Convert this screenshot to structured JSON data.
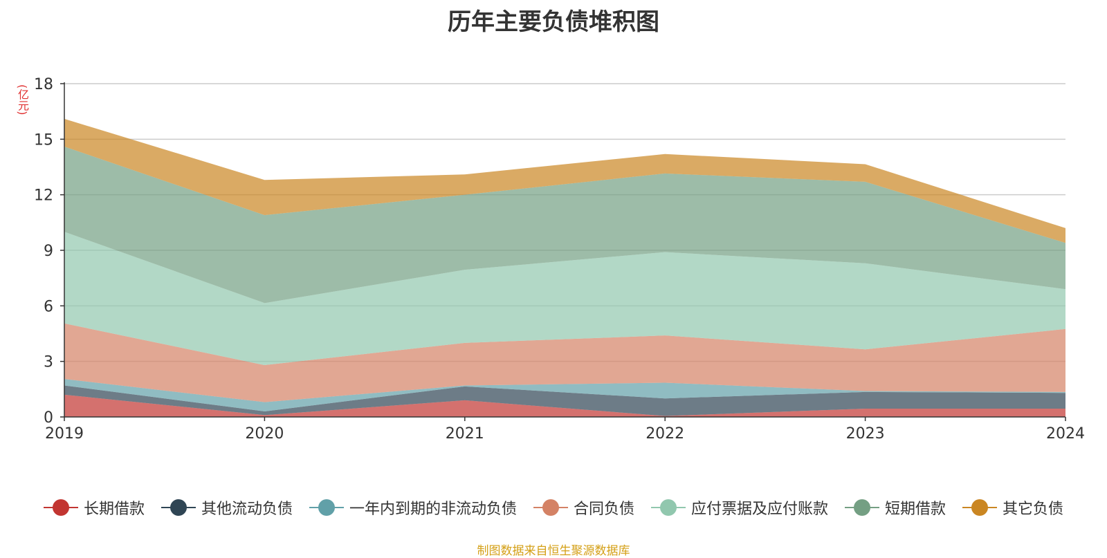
{
  "title": "历年主要负债堆积图",
  "unit_label": "(亿元)",
  "source": "制图数据来自恒生聚源数据库",
  "chart_data": {
    "type": "area",
    "stacked": true,
    "x": [
      "2019",
      "2020",
      "2021",
      "2022",
      "2023",
      "2024"
    ],
    "ylim": [
      0,
      18
    ],
    "yticks": [
      0,
      3,
      6,
      9,
      12,
      15,
      18
    ],
    "grid": true,
    "legend_position": "bottom",
    "series": [
      {
        "name": "长期借款",
        "color": "#c23531",
        "values": [
          1.2,
          0.1,
          0.9,
          0.05,
          0.45,
          0.45
        ]
      },
      {
        "name": "其他流动负债",
        "color": "#2f4554",
        "values": [
          0.5,
          0.2,
          0.75,
          0.95,
          0.9,
          0.85
        ]
      },
      {
        "name": "一年内到期的非流动负债",
        "color": "#61a0a8",
        "values": [
          0.35,
          0.5,
          0.05,
          0.85,
          0.05,
          0.05
        ]
      },
      {
        "name": "合同负债",
        "color": "#d48265",
        "values": [
          3.0,
          2.0,
          2.3,
          2.55,
          2.25,
          3.4
        ]
      },
      {
        "name": "应付票据及应付账款",
        "color": "#91c7ae",
        "values": [
          4.95,
          3.35,
          3.95,
          4.5,
          4.65,
          2.15
        ]
      },
      {
        "name": "短期借款",
        "color": "#749f83",
        "values": [
          4.6,
          4.75,
          4.05,
          4.25,
          4.4,
          2.5
        ]
      },
      {
        "name": "其它负债",
        "color": "#ca8622",
        "values": [
          1.5,
          1.9,
          1.1,
          1.05,
          0.95,
          0.8
        ]
      }
    ]
  }
}
